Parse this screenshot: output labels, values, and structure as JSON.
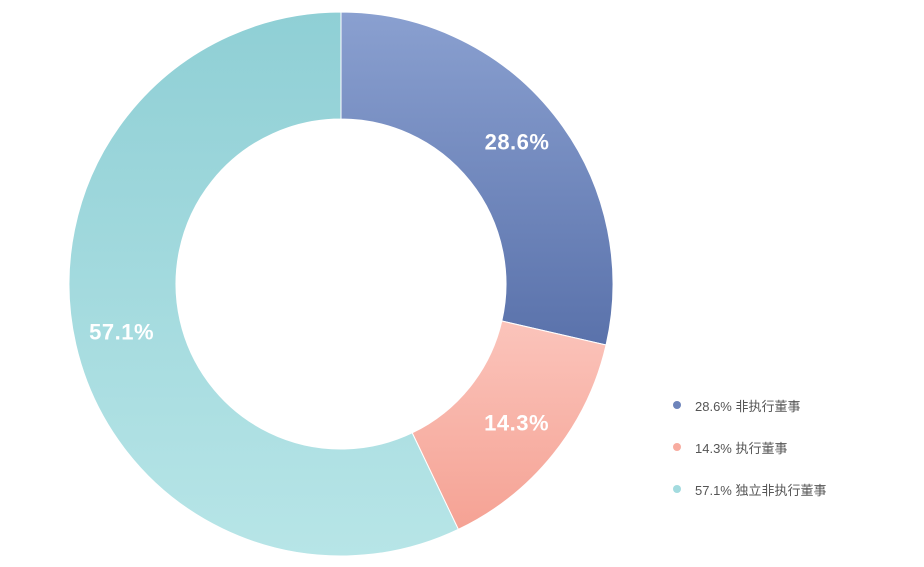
{
  "chart_data": {
    "type": "pie",
    "variant": "donut",
    "title": "",
    "categories": [
      "非执行董事",
      "执行董事",
      "独立非执行董事"
    ],
    "values": [
      28.6,
      14.3,
      57.1
    ],
    "slice_labels": [
      "28.6%",
      "14.3%",
      "57.1%"
    ],
    "legend_labels": [
      "28.6% 非执行董事",
      "14.3% 执行董事",
      "57.1% 独立非执行董事"
    ],
    "colors": [
      "#6d84bb",
      "#f8aca0",
      "#a3dbdf"
    ],
    "legend_position": "bottom-right",
    "start_angle_deg": 0,
    "direction": "clockwise"
  }
}
